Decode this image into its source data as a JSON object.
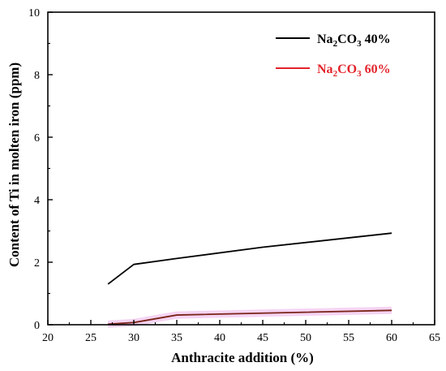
{
  "chart_data": {
    "type": "line",
    "xlabel": "Anthracite addition (%)",
    "ylabel": "Content of Ti in molten iron (ppm)",
    "xlim": [
      20,
      65
    ],
    "ylim": [
      0,
      10
    ],
    "xticks": [
      "20",
      "25",
      "30",
      "35",
      "40",
      "45",
      "50",
      "55",
      "60",
      "65"
    ],
    "yticks": [
      "0",
      "2",
      "4",
      "6",
      "8",
      "10"
    ],
    "grid": false,
    "legend_position": "top-right",
    "series": [
      {
        "name": "Na2CO3 40%",
        "legend": {
          "prefix": "Na",
          "sub1": "2",
          "mid": "CO",
          "sub2": "3",
          "suffix": " 40%"
        },
        "color": "#000000",
        "x": [
          27,
          30,
          35,
          45,
          60
        ],
        "y": [
          1.3,
          1.93,
          2.12,
          2.48,
          2.93
        ]
      },
      {
        "name": "Na2CO3 60%",
        "legend": {
          "prefix": "Na",
          "sub1": "2",
          "mid": "CO",
          "sub2": "3",
          "suffix": " 60%"
        },
        "color": "#e3242b",
        "line_color": "#7a2418",
        "band_color": "#f2c9f0",
        "x": [
          27,
          30,
          35,
          60
        ],
        "y": [
          0.02,
          0.07,
          0.31,
          0.46
        ]
      }
    ]
  }
}
